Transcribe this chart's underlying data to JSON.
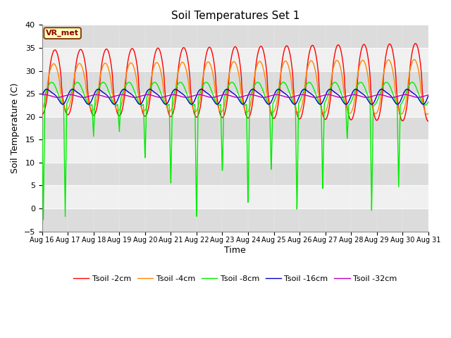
{
  "title": "Soil Temperatures Set 1",
  "xlabel": "Time",
  "ylabel": "Soil Temperature (C)",
  "ylim": [
    -5,
    40
  ],
  "annotation": "VR_met",
  "colors": {
    "2cm": "#FF0000",
    "4cm": "#FF8800",
    "8cm": "#00EE00",
    "16cm": "#0000CC",
    "32cm": "#BB00BB"
  },
  "legend_labels": [
    "Tsoil -2cm",
    "Tsoil -4cm",
    "Tsoil -8cm",
    "Tsoil -16cm",
    "Tsoil -32cm"
  ],
  "bg_color": "#FFFFFF",
  "plot_bg_light": "#F0F0F0",
  "plot_bg_dark": "#DCDCDC",
  "xtick_labels": [
    "Aug 16",
    "Aug 17",
    "Aug 18",
    "Aug 19",
    "Aug 20",
    "Aug 21",
    "Aug 22",
    "Aug 23",
    "Aug 24",
    "Aug 25",
    "Aug 26",
    "Aug 27",
    "Aug 28",
    "Aug 29",
    "Aug 30",
    "Aug 31"
  ],
  "line_width": 1.0,
  "n_points": 1500
}
